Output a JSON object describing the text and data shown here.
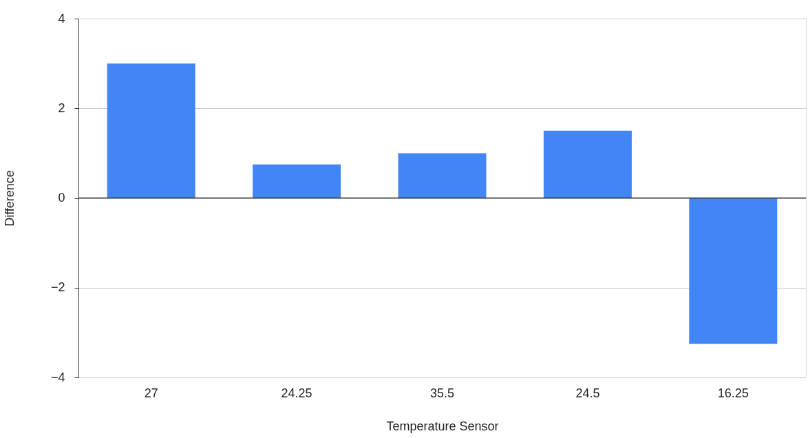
{
  "chart_data": {
    "type": "bar",
    "xlabel": "Temperature Sensor",
    "ylabel": "Difference",
    "categories": [
      "27",
      "24.25",
      "35.5",
      "24.5",
      "16.25"
    ],
    "values": [
      3,
      0.75,
      1,
      1.5,
      -3.25
    ],
    "color": "#4285f4",
    "ylim": [
      -4,
      4
    ],
    "yticks": [
      -4,
      -2,
      0,
      2,
      4
    ],
    "grid": "y"
  }
}
